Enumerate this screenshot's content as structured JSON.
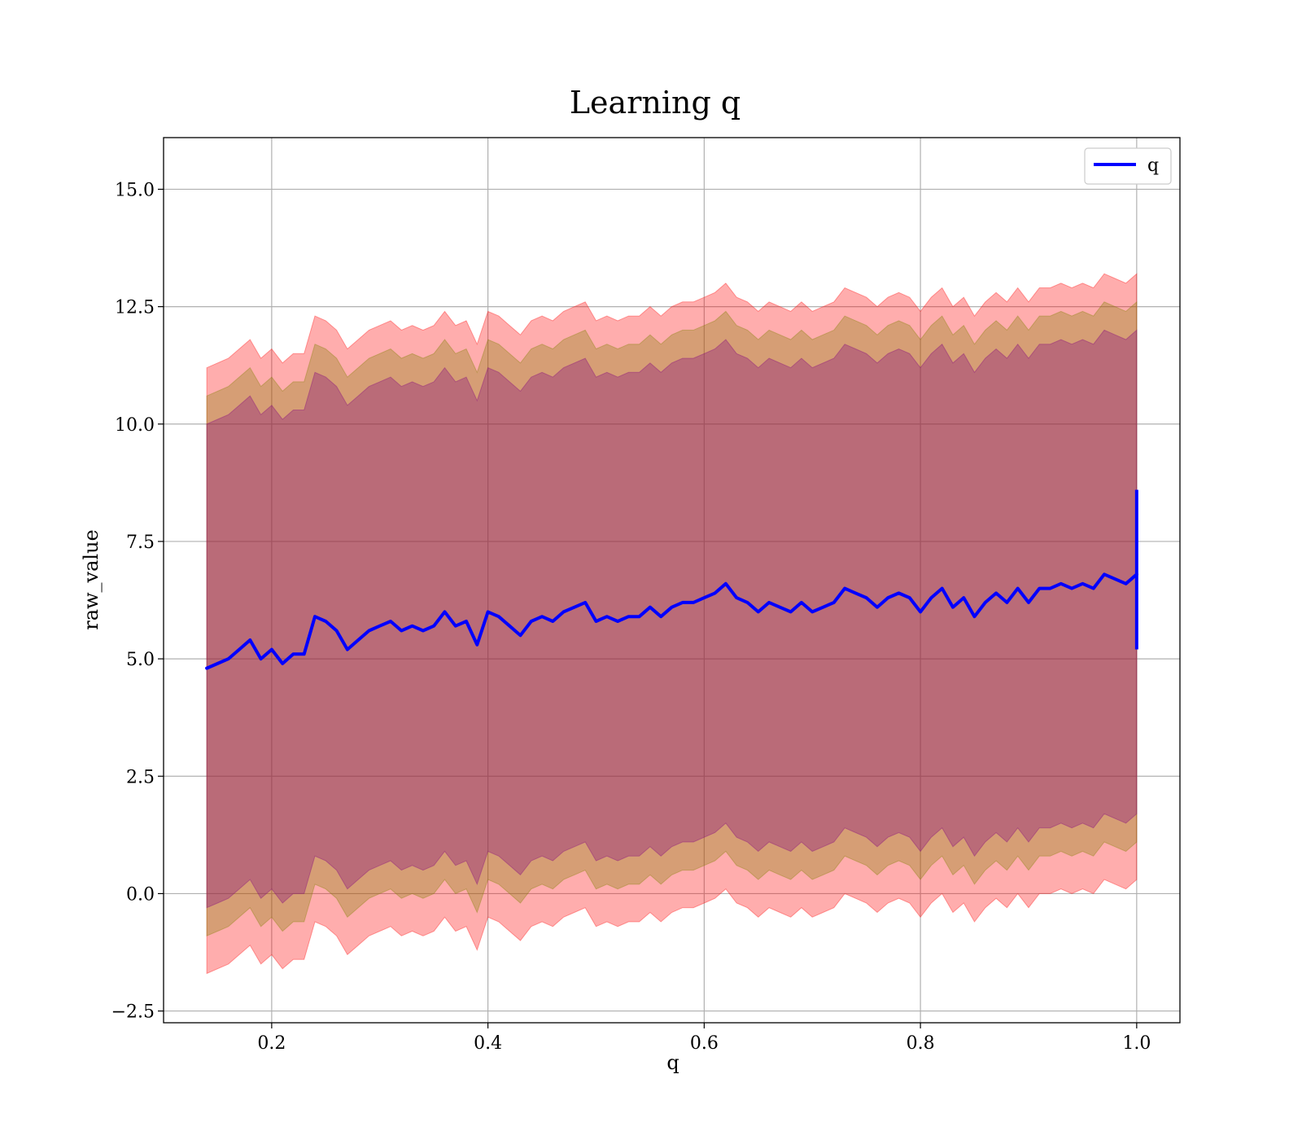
{
  "chart_data": {
    "type": "area",
    "title": "Learning q",
    "xlabel": "q",
    "ylabel": "raw_value",
    "xlim": [
      0.1,
      1.04
    ],
    "ylim": [
      -2.75,
      16.1
    ],
    "x_ticks": [
      0.2,
      0.4,
      0.6,
      0.8,
      1.0
    ],
    "x_tick_labels": [
      "0.2",
      "0.4",
      "0.6",
      "0.8",
      "1.0"
    ],
    "y_ticks": [
      -2.5,
      0.0,
      2.5,
      5.0,
      7.5,
      10.0,
      12.5,
      15.0
    ],
    "y_tick_labels": [
      "−2.5",
      "0.0",
      "2.5",
      "5.0",
      "7.5",
      "10.0",
      "12.5",
      "15.0"
    ],
    "grid": true,
    "legend": {
      "placement": "upper right",
      "entries": [
        "q"
      ]
    },
    "series": [
      {
        "name": "q",
        "color": "#0000ff",
        "x": [
          0.14,
          0.15,
          0.16,
          0.17,
          0.18,
          0.19,
          0.2,
          0.21,
          0.22,
          0.23,
          0.24,
          0.25,
          0.26,
          0.27,
          0.28,
          0.29,
          0.3,
          0.31,
          0.32,
          0.33,
          0.34,
          0.35,
          0.36,
          0.37,
          0.38,
          0.39,
          0.4,
          0.41,
          0.42,
          0.43,
          0.44,
          0.45,
          0.46,
          0.47,
          0.48,
          0.49,
          0.5,
          0.51,
          0.52,
          0.53,
          0.54,
          0.55,
          0.56,
          0.57,
          0.58,
          0.59,
          0.6,
          0.61,
          0.62,
          0.63,
          0.64,
          0.65,
          0.66,
          0.67,
          0.68,
          0.69,
          0.7,
          0.71,
          0.72,
          0.73,
          0.74,
          0.75,
          0.76,
          0.77,
          0.78,
          0.79,
          0.8,
          0.81,
          0.82,
          0.83,
          0.84,
          0.85,
          0.86,
          0.87,
          0.88,
          0.89,
          0.9,
          0.91,
          0.92,
          0.93,
          0.94,
          0.95,
          0.96,
          0.97,
          0.98,
          0.99,
          1.0
        ],
        "y": [
          4.8,
          4.9,
          5.0,
          5.2,
          5.4,
          5.0,
          5.2,
          4.9,
          5.1,
          5.1,
          5.9,
          5.8,
          5.6,
          5.2,
          5.4,
          5.6,
          5.7,
          5.8,
          5.6,
          5.7,
          5.6,
          5.7,
          6.0,
          5.7,
          5.8,
          5.3,
          6.0,
          5.9,
          5.7,
          5.5,
          5.8,
          5.9,
          5.8,
          6.0,
          6.1,
          6.2,
          5.8,
          5.9,
          5.8,
          5.9,
          5.9,
          6.1,
          5.9,
          6.1,
          6.2,
          6.2,
          6.3,
          6.4,
          6.6,
          6.3,
          6.2,
          6.0,
          6.2,
          6.1,
          6.0,
          6.2,
          6.0,
          6.1,
          6.2,
          6.5,
          6.4,
          6.3,
          6.1,
          6.3,
          6.4,
          6.3,
          6.0,
          6.3,
          6.5,
          6.1,
          6.3,
          5.9,
          6.2,
          6.4,
          6.2,
          6.5,
          6.2,
          6.5,
          6.5,
          6.6,
          6.5,
          6.6,
          6.5,
          6.8,
          6.7,
          6.6,
          6.8
        ],
        "final_spike": [
          5.2,
          8.6
        ]
      }
    ],
    "bands": [
      {
        "label": "",
        "color": "#ff0000",
        "opacity": 0.32,
        "offset_lower": -6.5,
        "offset_upper": 6.4
      },
      {
        "label": "",
        "color": "#808000",
        "opacity": 0.32,
        "offset_lower": -5.7,
        "offset_upper": 5.8
      },
      {
        "label": "",
        "color": "#800080",
        "opacity": 0.32,
        "offset_lower": -5.1,
        "offset_upper": 5.2
      }
    ]
  }
}
